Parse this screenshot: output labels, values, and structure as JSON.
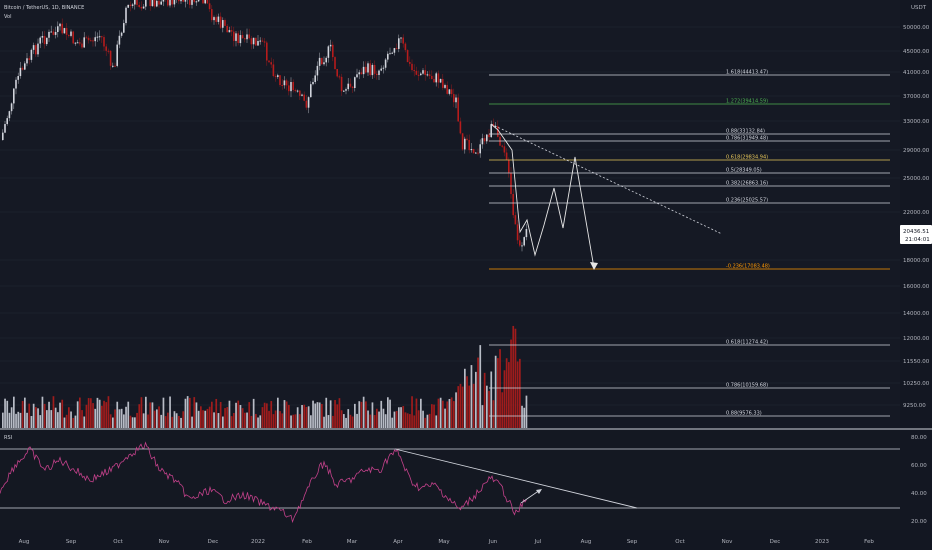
{
  "header": {
    "symbol_line": "Bitcoin / TetherUS, 1D, BINANCE",
    "volume_label": "Vol",
    "rsi_label": "RSI"
  },
  "chart_data": {
    "type": "candlestick",
    "currency_label": "USDT",
    "price_ticks": [
      "50000.00",
      "45000.00",
      "41000.00",
      "37000.00",
      "33000.00",
      "29000.00",
      "25000.00",
      "22000.00",
      "18000.00",
      "16000.00",
      "14000.00",
      "12000.00",
      "11550.00",
      "10250.00",
      "9250.00"
    ],
    "last_price": "20436.51",
    "last_price_time": "21:04:01",
    "rsi_ticks": [
      "80.00",
      "60.00",
      "40.00",
      "20.00"
    ],
    "time_ticks": [
      "Aug",
      "Sep",
      "Oct",
      "Nov",
      "Dec",
      "2022",
      "Feb",
      "Mar",
      "Apr",
      "May",
      "Jun",
      "Jul",
      "Aug",
      "Sep",
      "Oct",
      "Nov",
      "Dec",
      "2023",
      "Feb"
    ],
    "fib_levels_price": [
      {
        "label": "1.618(44413.47)",
        "color": "#d1d4dc"
      },
      {
        "label": "1.272(39414.59)",
        "color": "#4caf50"
      },
      {
        "label": "0.88(33132.84)",
        "color": "#d1d4dc"
      },
      {
        "label": "0.786(31949.48)",
        "color": "#d1d4dc"
      },
      {
        "label": "0.618(29834.94)",
        "color": "#e6c65a"
      },
      {
        "label": "0.5(28349.05)",
        "color": "#d1d4dc"
      },
      {
        "label": "0.382(26863.16)",
        "color": "#d1d4dc"
      },
      {
        "label": "0.236(25025.57)",
        "color": "#d1d4dc"
      },
      {
        "label": "-0.236(17083.48)",
        "color": "#ff9800"
      }
    ],
    "fib_levels_volume": [
      {
        "label": "0.618(11274.42)",
        "color": "#d1d4dc"
      },
      {
        "label": "0.786(10159.68)",
        "color": "#d1d4dc"
      },
      {
        "label": "0.88(9576.33)",
        "color": "#d1d4dc"
      }
    ],
    "colors": {
      "background": "#131722",
      "up": "#d1d4dc",
      "down": "#b71c1c",
      "rsi_line": "#c2418a",
      "grid": "#2a2e39",
      "trendline": "#d1d4dc"
    }
  }
}
